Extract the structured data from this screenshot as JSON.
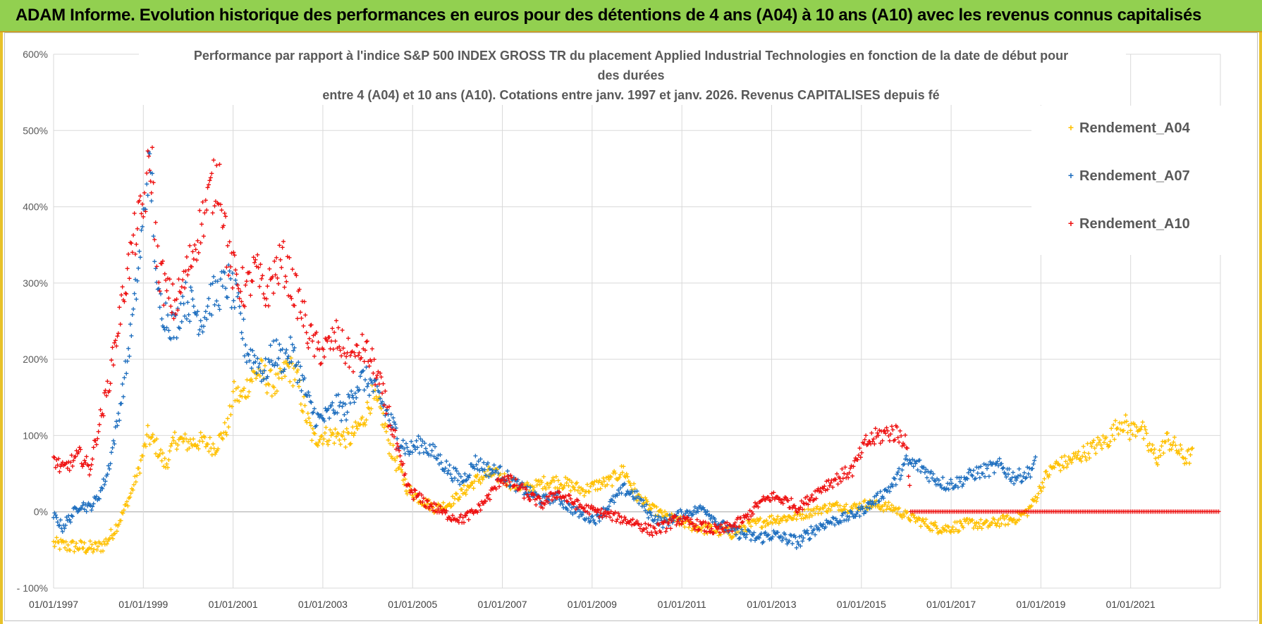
{
  "banner": {
    "title": "ADAM Informe. Evolution historique des performances en euros pour des détentions de 4 ans (A04) à 10 ans (A10) avec les revenus connus capitalisés"
  },
  "colors": {
    "banner_bg": "#92d050",
    "A04": "#ffc000",
    "A07": "#1f6fbf",
    "A10": "#ee1111"
  },
  "chart_data": {
    "type": "scatter",
    "title_lines": [
      "Performance par rapport à l'indice S&P 500 INDEX GROSS TR  du placement Applied Industrial Technologies en fonction de la date de début pour",
      "des durées",
      "entre 4 (A04) et 10 ans (A10). Cotations entre janv. 1997 et janv. 2026. Revenus CAPITALISES depuis fé"
    ],
    "x_tick_labels": [
      "01/01/1997",
      "01/01/1999",
      "01/01/2001",
      "01/01/2003",
      "01/01/2005",
      "01/01/2007",
      "01/01/2009",
      "01/01/2011",
      "01/01/2013",
      "01/01/2015",
      "01/01/2017",
      "01/01/2019",
      "01/01/2021"
    ],
    "xlim": [
      1997.0,
      2023.0
    ],
    "y_tick_labels": [
      "- 100%",
      "0%",
      "100%",
      "200%",
      "300%",
      "400%",
      "500%",
      "600%"
    ],
    "ylim": [
      -100,
      600
    ],
    "y_unit": "%",
    "grid": true,
    "legend_position": "right",
    "series": [
      {
        "name": "Rendement_A04",
        "color": "#ffc000",
        "points": [
          [
            1997.0,
            -42
          ],
          [
            1997.3,
            -45
          ],
          [
            1997.6,
            -46
          ],
          [
            1997.9,
            -48
          ],
          [
            1998.1,
            -44
          ],
          [
            1998.3,
            -30
          ],
          [
            1998.5,
            -8
          ],
          [
            1998.7,
            20
          ],
          [
            1998.9,
            55
          ],
          [
            1999.1,
            100
          ],
          [
            1999.3,
            85
          ],
          [
            1999.5,
            60
          ],
          [
            1999.7,
            95
          ],
          [
            2000.0,
            90
          ],
          [
            2000.3,
            92
          ],
          [
            2000.6,
            85
          ],
          [
            2000.9,
            115
          ],
          [
            2001.0,
            155
          ],
          [
            2001.2,
            150
          ],
          [
            2001.4,
            175
          ],
          [
            2001.6,
            185
          ],
          [
            2001.8,
            170
          ],
          [
            2002.0,
            165
          ],
          [
            2002.2,
            190
          ],
          [
            2002.4,
            180
          ],
          [
            2002.6,
            130
          ],
          [
            2002.8,
            95
          ],
          [
            2003.0,
            100
          ],
          [
            2003.3,
            100
          ],
          [
            2003.6,
            95
          ],
          [
            2003.9,
            120
          ],
          [
            2004.1,
            150
          ],
          [
            2004.3,
            130
          ],
          [
            2004.5,
            85
          ],
          [
            2004.7,
            55
          ],
          [
            2004.9,
            30
          ],
          [
            2005.2,
            15
          ],
          [
            2005.5,
            5
          ],
          [
            2005.8,
            10
          ],
          [
            2006.1,
            25
          ],
          [
            2006.4,
            40
          ],
          [
            2006.7,
            50
          ],
          [
            2007.0,
            45
          ],
          [
            2007.3,
            35
          ],
          [
            2007.6,
            30
          ],
          [
            2007.9,
            38
          ],
          [
            2008.2,
            40
          ],
          [
            2008.5,
            35
          ],
          [
            2008.8,
            28
          ],
          [
            2009.1,
            35
          ],
          [
            2009.4,
            40
          ],
          [
            2009.7,
            55
          ],
          [
            2010.0,
            20
          ],
          [
            2010.3,
            5
          ],
          [
            2010.6,
            -5
          ],
          [
            2010.9,
            -12
          ],
          [
            2011.2,
            -18
          ],
          [
            2011.5,
            -22
          ],
          [
            2011.8,
            -25
          ],
          [
            2012.1,
            -28
          ],
          [
            2012.4,
            -20
          ],
          [
            2012.7,
            -15
          ],
          [
            2013.0,
            -10
          ],
          [
            2013.3,
            -8
          ],
          [
            2013.6,
            -5
          ],
          [
            2013.9,
            0
          ],
          [
            2014.2,
            5
          ],
          [
            2014.5,
            8
          ],
          [
            2014.8,
            5
          ],
          [
            2015.1,
            10
          ],
          [
            2015.4,
            8
          ],
          [
            2015.7,
            5
          ],
          [
            2016.0,
            -5
          ],
          [
            2016.3,
            -12
          ],
          [
            2016.6,
            -20
          ],
          [
            2016.9,
            -22
          ],
          [
            2017.2,
            -18
          ],
          [
            2017.5,
            -15
          ],
          [
            2017.8,
            -18
          ],
          [
            2018.1,
            -12
          ],
          [
            2018.4,
            -10
          ],
          [
            2018.7,
            0
          ],
          [
            2018.9,
            20
          ],
          [
            2019.1,
            45
          ],
          [
            2019.3,
            60
          ],
          [
            2019.6,
            65
          ],
          [
            2019.9,
            75
          ],
          [
            2020.2,
            85
          ],
          [
            2020.5,
            95
          ],
          [
            2020.8,
            120
          ],
          [
            2021.0,
            105
          ],
          [
            2021.2,
            115
          ],
          [
            2021.4,
            85
          ],
          [
            2021.6,
            70
          ],
          [
            2021.8,
            95
          ],
          [
            2022.0,
            85
          ],
          [
            2022.2,
            70
          ],
          [
            2022.4,
            75
          ]
        ]
      },
      {
        "name": "Rendement_A07",
        "color": "#1f6fbf",
        "points": [
          [
            1997.0,
            -5
          ],
          [
            1997.2,
            -20
          ],
          [
            1997.4,
            -5
          ],
          [
            1997.6,
            10
          ],
          [
            1997.8,
            5
          ],
          [
            1998.0,
            20
          ],
          [
            1998.2,
            50
          ],
          [
            1998.4,
            110
          ],
          [
            1998.6,
            180
          ],
          [
            1998.8,
            270
          ],
          [
            1999.0,
            380
          ],
          [
            1999.1,
            450
          ],
          [
            1999.2,
            420
          ],
          [
            1999.3,
            280
          ],
          [
            1999.5,
            260
          ],
          [
            1999.7,
            240
          ],
          [
            1999.9,
            280
          ],
          [
            2000.1,
            270
          ],
          [
            2000.3,
            250
          ],
          [
            2000.5,
            280
          ],
          [
            2000.7,
            290
          ],
          [
            2000.9,
            300
          ],
          [
            2001.1,
            270
          ],
          [
            2001.3,
            210
          ],
          [
            2001.5,
            200
          ],
          [
            2001.7,
            180
          ],
          [
            2001.9,
            210
          ],
          [
            2002.1,
            200
          ],
          [
            2002.3,
            210
          ],
          [
            2002.5,
            180
          ],
          [
            2002.7,
            140
          ],
          [
            2002.9,
            120
          ],
          [
            2003.1,
            125
          ],
          [
            2003.3,
            140
          ],
          [
            2003.5,
            130
          ],
          [
            2003.7,
            160
          ],
          [
            2003.9,
            175
          ],
          [
            2004.1,
            165
          ],
          [
            2004.3,
            145
          ],
          [
            2004.5,
            120
          ],
          [
            2004.7,
            95
          ],
          [
            2004.9,
            80
          ],
          [
            2005.2,
            90
          ],
          [
            2005.5,
            75
          ],
          [
            2005.8,
            55
          ],
          [
            2006.1,
            40
          ],
          [
            2006.4,
            65
          ],
          [
            2006.7,
            55
          ],
          [
            2007.0,
            50
          ],
          [
            2007.3,
            35
          ],
          [
            2007.6,
            25
          ],
          [
            2007.9,
            15
          ],
          [
            2008.2,
            20
          ],
          [
            2008.5,
            5
          ],
          [
            2008.8,
            -5
          ],
          [
            2009.1,
            -10
          ],
          [
            2009.4,
            10
          ],
          [
            2009.7,
            30
          ],
          [
            2010.0,
            20
          ],
          [
            2010.3,
            -5
          ],
          [
            2010.6,
            -15
          ],
          [
            2010.9,
            -5
          ],
          [
            2011.2,
            0
          ],
          [
            2011.5,
            5
          ],
          [
            2011.8,
            -15
          ],
          [
            2012.1,
            -25
          ],
          [
            2012.4,
            -30
          ],
          [
            2012.7,
            -35
          ],
          [
            2013.0,
            -30
          ],
          [
            2013.3,
            -35
          ],
          [
            2013.6,
            -40
          ],
          [
            2013.9,
            -25
          ],
          [
            2014.2,
            -15
          ],
          [
            2014.5,
            -10
          ],
          [
            2014.8,
            -5
          ],
          [
            2015.1,
            5
          ],
          [
            2015.4,
            20
          ],
          [
            2015.7,
            35
          ],
          [
            2016.0,
            65
          ],
          [
            2016.3,
            60
          ],
          [
            2016.6,
            45
          ],
          [
            2016.9,
            35
          ],
          [
            2017.2,
            40
          ],
          [
            2017.5,
            50
          ],
          [
            2017.8,
            55
          ],
          [
            2018.1,
            60
          ],
          [
            2018.4,
            45
          ],
          [
            2018.7,
            50
          ],
          [
            2018.9,
            65
          ]
        ]
      },
      {
        "name": "Rendement_A10",
        "color": "#ee1111",
        "points": [
          [
            1997.0,
            70
          ],
          [
            1997.2,
            55
          ],
          [
            1997.4,
            65
          ],
          [
            1997.6,
            75
          ],
          [
            1997.8,
            55
          ],
          [
            1998.0,
            110
          ],
          [
            1998.2,
            160
          ],
          [
            1998.4,
            230
          ],
          [
            1998.6,
            300
          ],
          [
            1998.8,
            360
          ],
          [
            1999.0,
            400
          ],
          [
            1999.1,
            440
          ],
          [
            1999.2,
            450
          ],
          [
            1999.3,
            330
          ],
          [
            1999.5,
            290
          ],
          [
            1999.7,
            270
          ],
          [
            1999.9,
            300
          ],
          [
            2000.1,
            340
          ],
          [
            2000.3,
            380
          ],
          [
            2000.5,
            420
          ],
          [
            2000.7,
            440
          ],
          [
            2000.9,
            330
          ],
          [
            2001.1,
            300
          ],
          [
            2001.3,
            290
          ],
          [
            2001.5,
            320
          ],
          [
            2001.7,
            280
          ],
          [
            2001.9,
            310
          ],
          [
            2002.1,
            330
          ],
          [
            2002.3,
            300
          ],
          [
            2002.5,
            270
          ],
          [
            2002.7,
            230
          ],
          [
            2002.9,
            210
          ],
          [
            2003.1,
            215
          ],
          [
            2003.3,
            230
          ],
          [
            2003.5,
            210
          ],
          [
            2003.7,
            200
          ],
          [
            2003.9,
            215
          ],
          [
            2004.1,
            195
          ],
          [
            2004.3,
            160
          ],
          [
            2004.5,
            120
          ],
          [
            2004.7,
            70
          ],
          [
            2004.9,
            30
          ],
          [
            2005.2,
            15
          ],
          [
            2005.5,
            5
          ],
          [
            2005.8,
            -5
          ],
          [
            2006.1,
            -10
          ],
          [
            2006.4,
            0
          ],
          [
            2006.7,
            20
          ],
          [
            2007.0,
            45
          ],
          [
            2007.3,
            35
          ],
          [
            2007.6,
            20
          ],
          [
            2007.9,
            10
          ],
          [
            2008.2,
            25
          ],
          [
            2008.5,
            15
          ],
          [
            2008.8,
            5
          ],
          [
            2009.1,
            0
          ],
          [
            2009.4,
            -5
          ],
          [
            2009.7,
            -10
          ],
          [
            2010.0,
            -15
          ],
          [
            2010.3,
            -25
          ],
          [
            2010.6,
            -20
          ],
          [
            2010.9,
            -10
          ],
          [
            2011.2,
            -15
          ],
          [
            2011.5,
            -20
          ],
          [
            2011.8,
            -25
          ],
          [
            2012.1,
            -20
          ],
          [
            2012.4,
            -10
          ],
          [
            2012.7,
            10
          ],
          [
            2013.0,
            20
          ],
          [
            2013.3,
            15
          ],
          [
            2013.6,
            5
          ],
          [
            2013.9,
            20
          ],
          [
            2014.2,
            35
          ],
          [
            2014.5,
            45
          ],
          [
            2014.8,
            55
          ],
          [
            2015.1,
            90
          ],
          [
            2015.4,
            100
          ],
          [
            2015.7,
            105
          ],
          [
            2016.0,
            95
          ],
          [
            2016.1,
            0
          ],
          [
            2017.0,
            0
          ],
          [
            2018.0,
            0
          ],
          [
            2019.0,
            0
          ],
          [
            2020.0,
            0
          ],
          [
            2021.0,
            0
          ],
          [
            2022.0,
            0
          ],
          [
            2023.0,
            0
          ]
        ]
      }
    ]
  }
}
